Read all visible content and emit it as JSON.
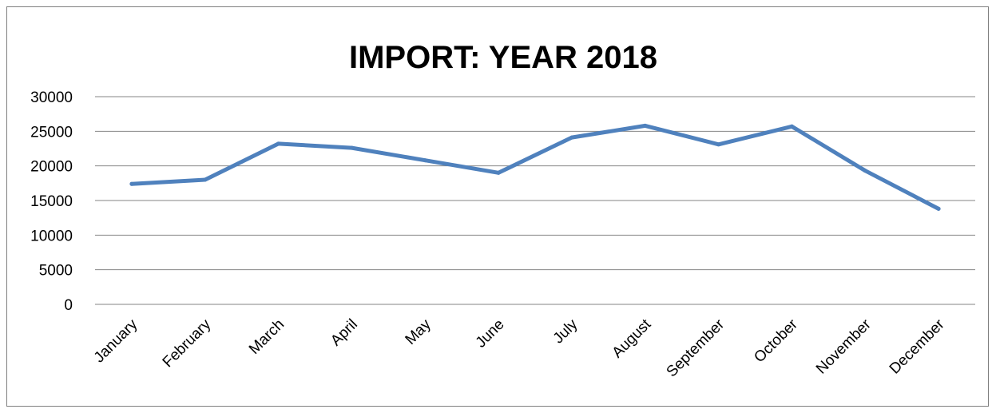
{
  "chart_data": {
    "type": "line",
    "title": "IMPORT: YEAR 2018",
    "xlabel": "",
    "ylabel": "",
    "categories": [
      "January",
      "February",
      "March",
      "April",
      "May",
      "June",
      "July",
      "August",
      "September",
      "October",
      "November",
      "December"
    ],
    "series": [
      {
        "values": [
          17400,
          18000,
          23200,
          22600,
          20800,
          19000,
          24100,
          25800,
          23100,
          25700,
          19300,
          13800
        ],
        "color": "#4f81bd"
      }
    ],
    "ylim": [
      0,
      30000
    ],
    "yticks": [
      0,
      5000,
      10000,
      15000,
      20000,
      25000,
      30000
    ],
    "grid": true,
    "legend": "none"
  }
}
